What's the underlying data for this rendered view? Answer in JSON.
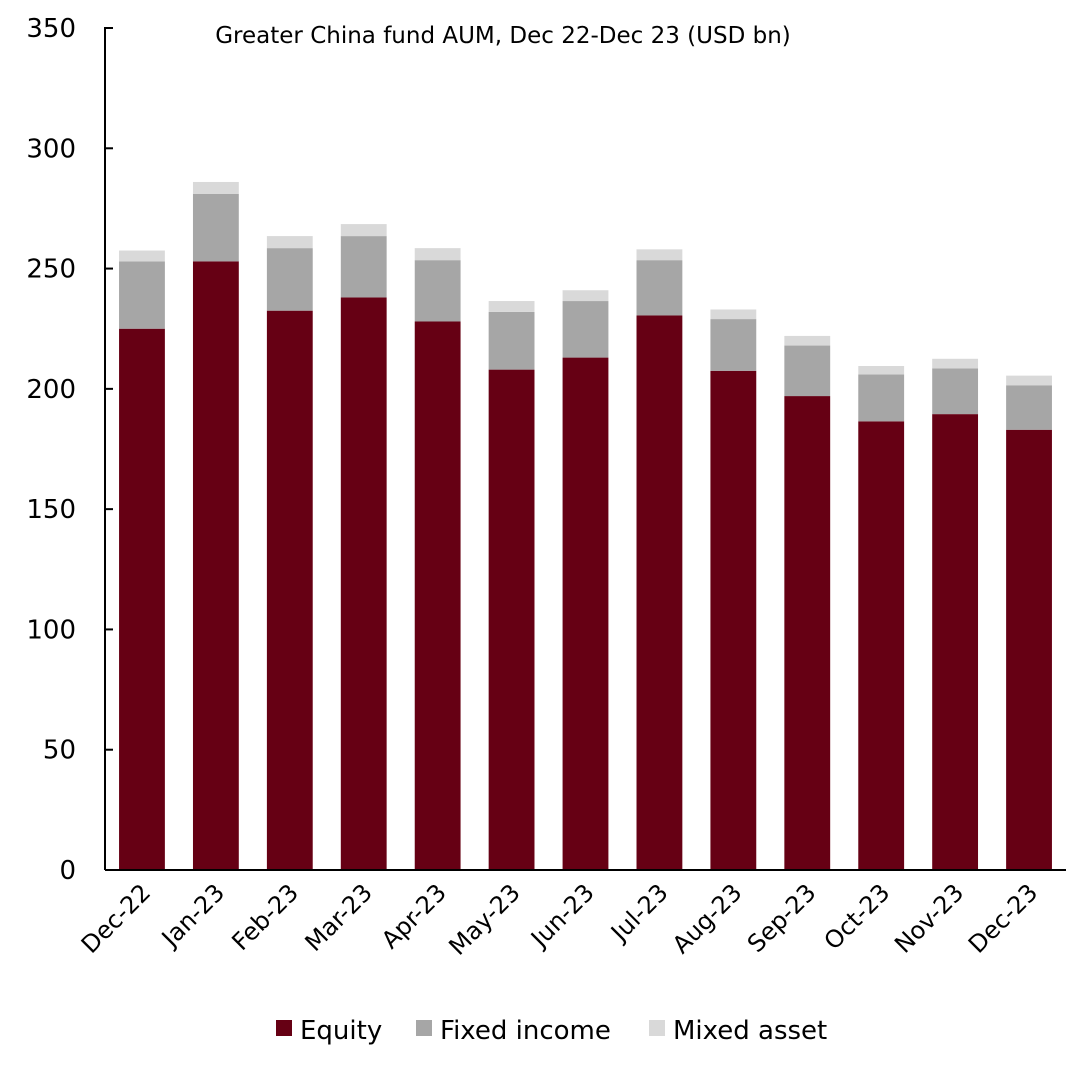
{
  "chart_data": {
    "type": "bar",
    "stacked": true,
    "title": "Greater China fund AUM, Dec 22-Dec 23 (USD bn)",
    "xlabel": "",
    "ylabel": "",
    "ylim": [
      0,
      350
    ],
    "yticks": [
      0,
      50,
      100,
      150,
      200,
      250,
      300,
      350
    ],
    "grid": false,
    "legend_position": "bottom-center",
    "categories": [
      "Dec-22",
      "Jan-23",
      "Feb-23",
      "Mar-23",
      "Apr-23",
      "May-23",
      "Jun-23",
      "Jul-23",
      "Aug-23",
      "Sep-23",
      "Oct-23",
      "Nov-23",
      "Dec-23"
    ],
    "series": [
      {
        "name": "Equity",
        "color": "#660014",
        "values": [
          225,
          253,
          232.5,
          238,
          228,
          208,
          213,
          230.5,
          207.5,
          197,
          186.5,
          189.5,
          183
        ]
      },
      {
        "name": "Fixed income",
        "color": "#a6a6a6",
        "values": [
          28,
          28,
          26,
          25.5,
          25.5,
          24,
          23.5,
          23,
          21.5,
          21,
          19.5,
          19,
          18.5
        ]
      },
      {
        "name": "Mixed asset",
        "color": "#d9d9d9",
        "values": [
          4.5,
          5,
          5,
          5,
          5,
          4.5,
          4.5,
          4.5,
          4,
          4,
          3.5,
          4,
          4
        ]
      }
    ]
  }
}
